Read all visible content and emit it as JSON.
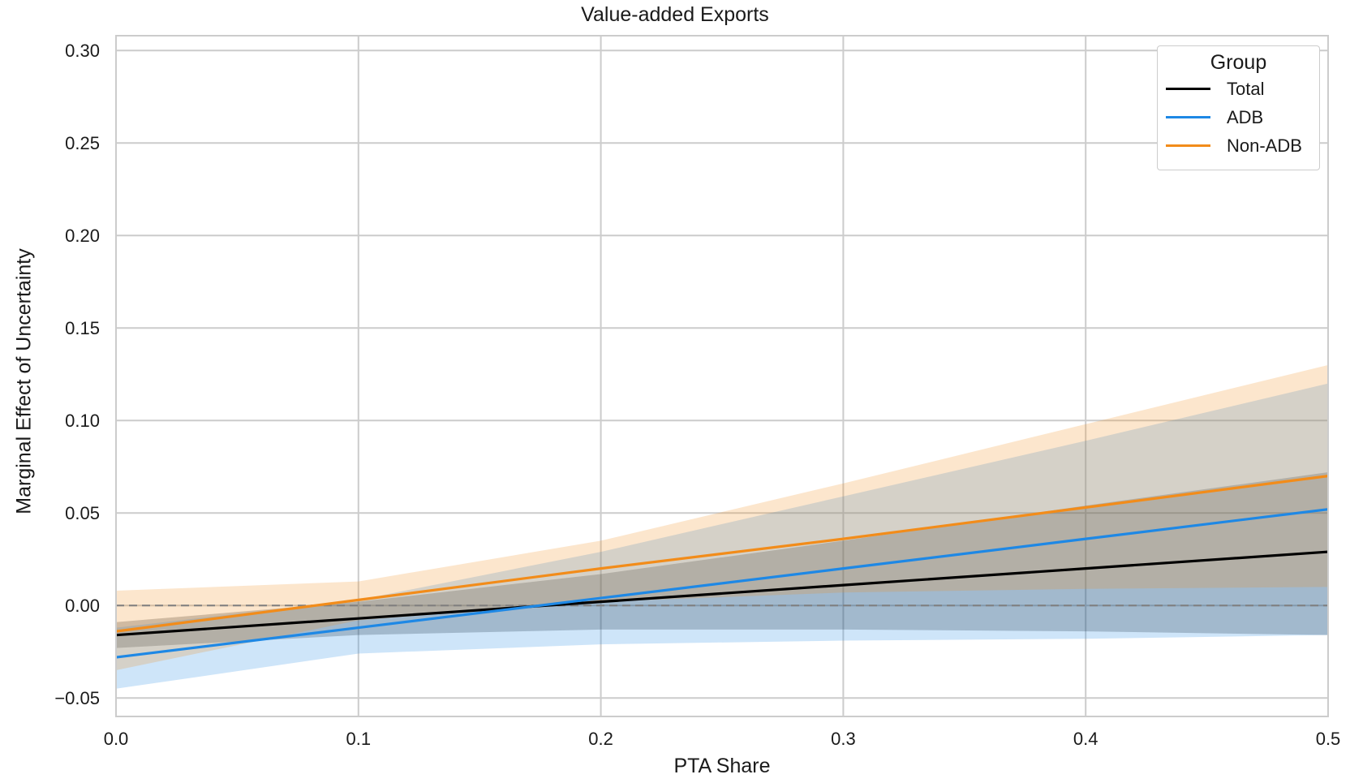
{
  "chart_data": {
    "type": "line",
    "title": "Value-added Exports",
    "xlabel": "PTA Share",
    "ylabel": "Marginal Effect of Uncertainty",
    "xlim": [
      0.0,
      0.5
    ],
    "ylim": [
      -0.06,
      0.308
    ],
    "x_ticks": [
      "0.0",
      "0.1",
      "0.2",
      "0.3",
      "0.4",
      "0.5"
    ],
    "x_tick_values": [
      0.0,
      0.1,
      0.2,
      0.3,
      0.4,
      0.5
    ],
    "y_ticks": [
      "−0.05",
      "0.00",
      "0.05",
      "0.10",
      "0.15",
      "0.20",
      "0.25",
      "0.30"
    ],
    "y_tick_values": [
      -0.05,
      0.0,
      0.05,
      0.1,
      0.15,
      0.2,
      0.25,
      0.3
    ],
    "grid": true,
    "reference_line": {
      "y": 0.0,
      "style": "dashed",
      "color": "#808080"
    },
    "legend": {
      "title": "Group",
      "position": "top-right"
    },
    "x": [
      0.0,
      0.1,
      0.2,
      0.3,
      0.4,
      0.5
    ],
    "series": [
      {
        "name": "Total",
        "color": "#000000",
        "values": [
          -0.016,
          -0.007,
          0.002,
          0.011,
          0.02,
          0.029
        ],
        "ci_lower": [
          -0.023,
          -0.016,
          -0.013,
          -0.013,
          -0.014,
          -0.016
        ],
        "ci_upper": [
          -0.009,
          0.002,
          0.017,
          0.035,
          0.054,
          0.072
        ]
      },
      {
        "name": "ADB",
        "color": "#1e88e5",
        "values": [
          -0.028,
          -0.012,
          0.004,
          0.02,
          0.036,
          0.052
        ],
        "ci_lower": [
          -0.045,
          -0.026,
          -0.021,
          -0.019,
          -0.018,
          -0.016
        ],
        "ci_upper": [
          -0.012,
          0.003,
          0.029,
          0.059,
          0.089,
          0.12
        ]
      },
      {
        "name": "Non-ADB",
        "color": "#f28c1a",
        "values": [
          -0.014,
          0.003,
          0.02,
          0.036,
          0.053,
          0.07
        ],
        "ci_lower": [
          -0.035,
          -0.008,
          0.002,
          0.007,
          0.009,
          0.01
        ],
        "ci_upper": [
          0.008,
          0.013,
          0.035,
          0.066,
          0.098,
          0.13
        ]
      }
    ]
  }
}
